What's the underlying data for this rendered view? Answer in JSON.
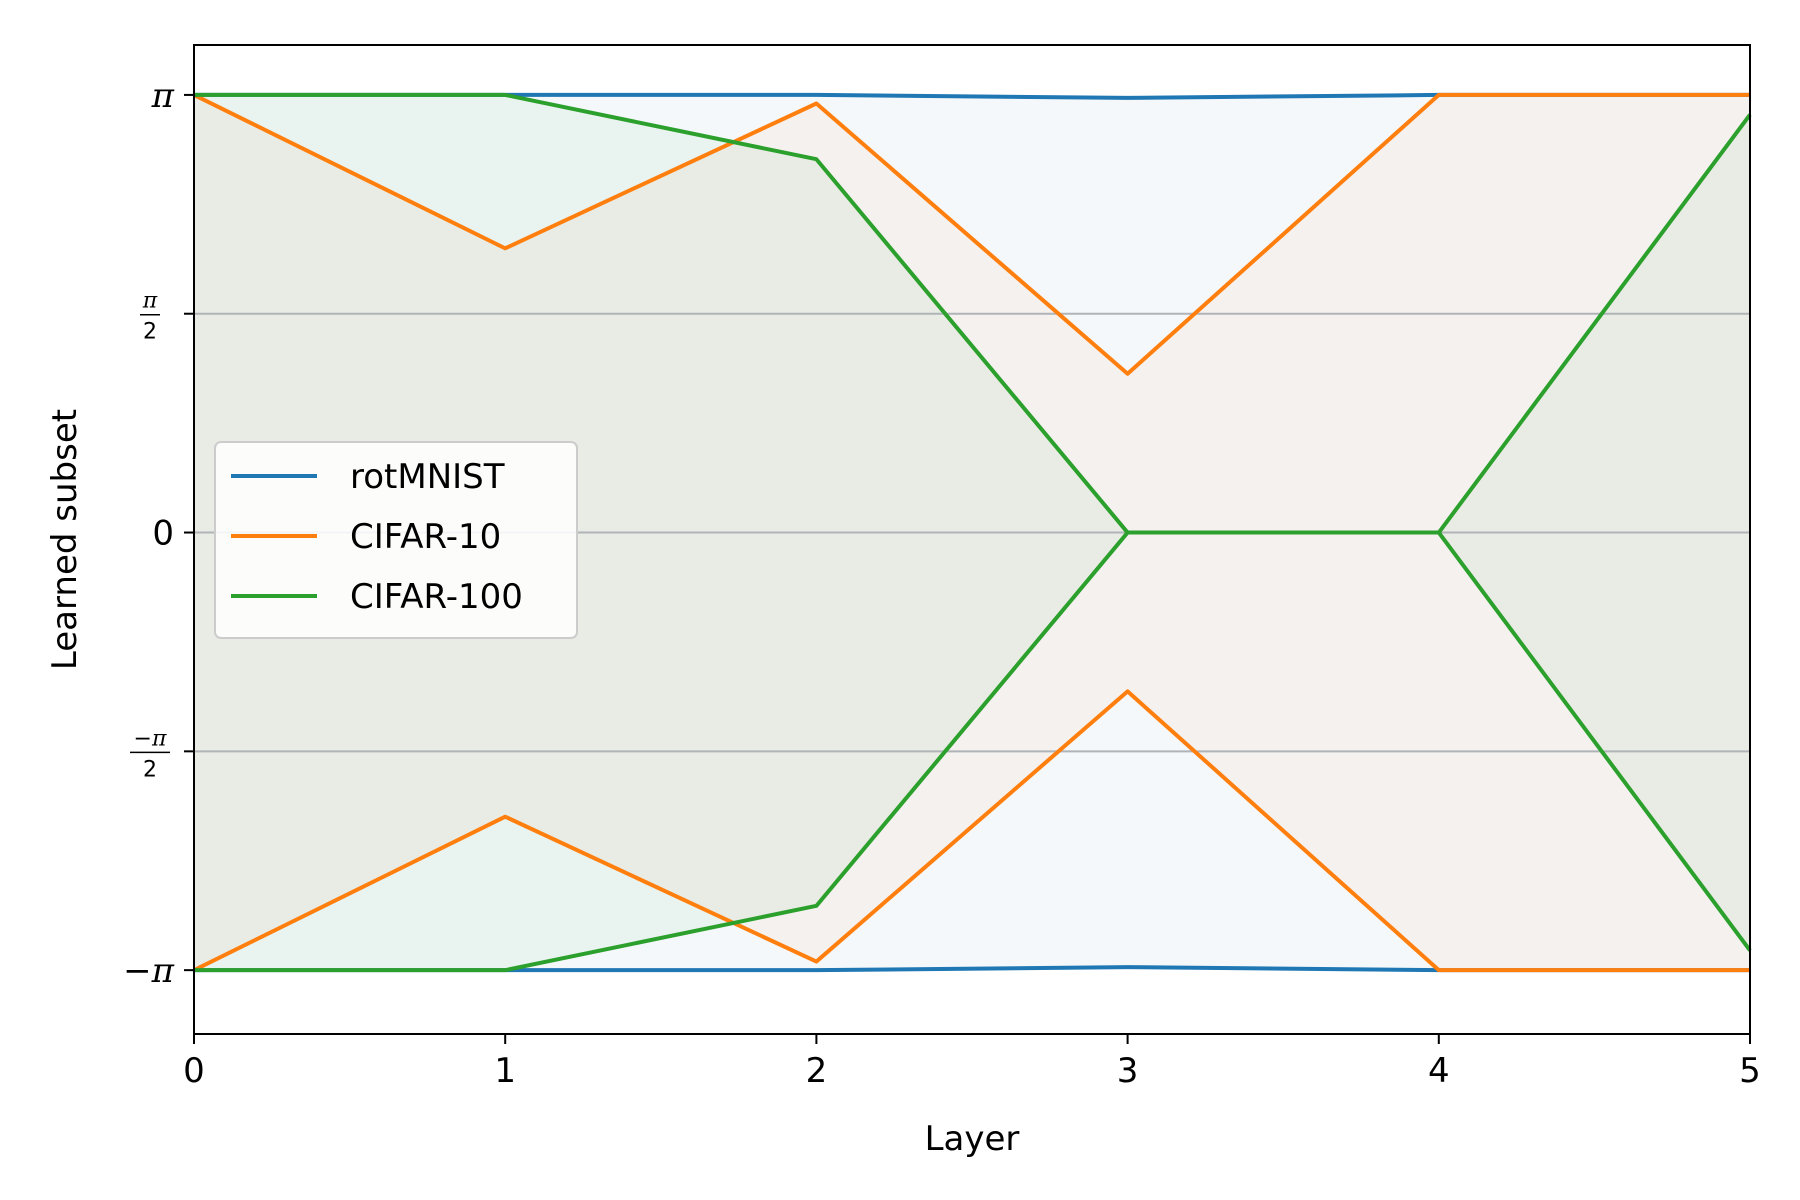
{
  "chart_data": {
    "type": "line",
    "title": "",
    "xlabel": "Layer",
    "ylabel": "Learned subset",
    "xlim": [
      0,
      5
    ],
    "ylim": [
      -3.6,
      3.5
    ],
    "x": [
      0,
      1,
      2,
      3,
      4,
      5
    ],
    "x_ticks": [
      {
        "value": 0,
        "label": "0"
      },
      {
        "value": 1,
        "label": "1"
      },
      {
        "value": 2,
        "label": "2"
      },
      {
        "value": 3,
        "label": "3"
      },
      {
        "value": 4,
        "label": "4"
      },
      {
        "value": 5,
        "label": "5"
      }
    ],
    "y_ticks": [
      {
        "value": 3.14159,
        "kind": "plain",
        "sign": "",
        "symbol": "π"
      },
      {
        "value": 1.5708,
        "kind": "frac",
        "num": "π",
        "den": "2"
      },
      {
        "value": 0,
        "kind": "text",
        "label": "0"
      },
      {
        "value": -1.5708,
        "kind": "frac",
        "num": "−π",
        "den": "2"
      },
      {
        "value": -3.14159,
        "kind": "plain",
        "sign": "−",
        "symbol": "π"
      }
    ],
    "gridlines_y": [
      1.5708,
      0,
      -1.5708
    ],
    "grid_color": "#b0b4b8",
    "legend_position": "center-left",
    "series": [
      {
        "name": "rotMNIST",
        "color": "#1f77b4",
        "upper": [
          3.14159,
          3.14159,
          3.14159,
          3.12,
          3.14159,
          3.14159
        ],
        "lower": [
          -3.14159,
          -3.14159,
          -3.14159,
          -3.12,
          -3.14159,
          -3.14159
        ]
      },
      {
        "name": "CIFAR-10",
        "color": "#ff7f0e",
        "upper": [
          3.14159,
          2.04,
          3.08,
          1.14,
          3.14159,
          3.14159
        ],
        "lower": [
          -3.14159,
          -2.04,
          -3.08,
          -1.14,
          -3.14159,
          -3.14159
        ]
      },
      {
        "name": "CIFAR-100",
        "color": "#2ca02c",
        "upper": [
          3.14159,
          3.14159,
          2.68,
          0,
          0,
          3.0
        ],
        "lower": [
          -3.14159,
          -3.14159,
          -2.68,
          0,
          0,
          -3.0
        ]
      }
    ]
  }
}
